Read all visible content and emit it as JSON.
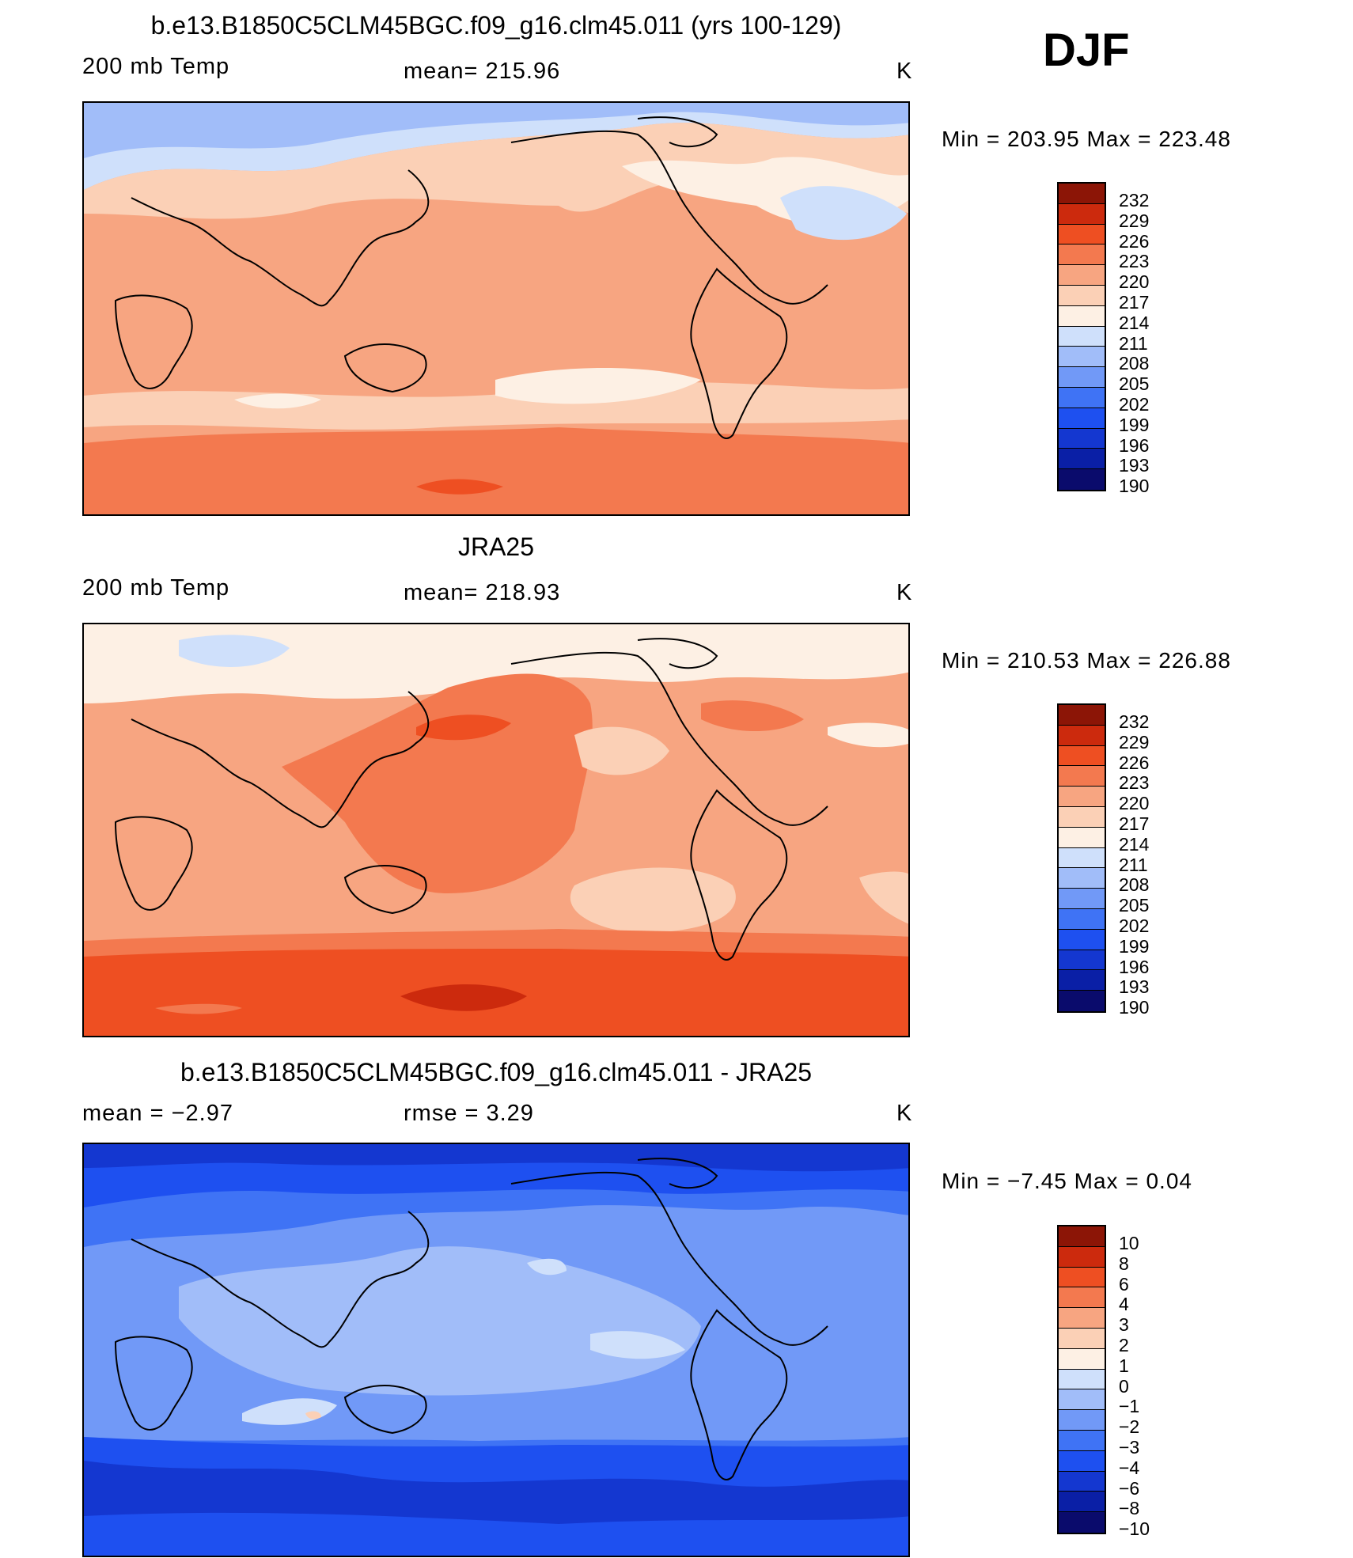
{
  "season": "DJF",
  "colors": {
    "temp_scale": [
      "#0a0b6c",
      "#0a1fa6",
      "#1437d0",
      "#1e50f0",
      "#3f73f5",
      "#7199f7",
      "#a1bdf9",
      "#cfe0fb",
      "#fdf0e4",
      "#fbd0b6",
      "#f7a581",
      "#f3794f",
      "#ee4f22",
      "#cc2a0d",
      "#8c1506"
    ],
    "diff_scale": [
      "#0a0b6c",
      "#0a1fa6",
      "#1437d0",
      "#1e50f0",
      "#3f73f5",
      "#7199f7",
      "#a1bdf9",
      "#cfe0fb",
      "#fdf0e4",
      "#fbd0b6",
      "#f7a581",
      "#f3794f",
      "#ee4f22",
      "#cc2a0d",
      "#8c1506"
    ]
  },
  "panels": [
    {
      "title": "b.e13.B1850C5CLM45BGC.f09_g16.clm45.011 (yrs 100-129)",
      "left_label": "200 mb Temp",
      "center_label": "mean= 215.96",
      "units": "K",
      "minmax": "Min = 203.95 Max = 223.48",
      "levels": [
        "232",
        "229",
        "226",
        "223",
        "220",
        "217",
        "214",
        "211",
        "208",
        "205",
        "202",
        "199",
        "196",
        "193",
        "190"
      ]
    },
    {
      "title": "JRA25",
      "left_label": "200 mb Temp",
      "center_label": "mean= 218.93",
      "units": "K",
      "minmax": "Min = 210.53 Max = 226.88",
      "levels": [
        "232",
        "229",
        "226",
        "223",
        "220",
        "217",
        "214",
        "211",
        "208",
        "205",
        "202",
        "199",
        "196",
        "193",
        "190"
      ]
    },
    {
      "title": "b.e13.B1850C5CLM45BGC.f09_g16.clm45.011 - JRA25",
      "left_label": "mean =   −2.97",
      "center_label": "rmse =    3.29",
      "units": "K",
      "minmax": "Min =   −7.45 Max =     0.04",
      "levels": [
        "10",
        "8",
        "6",
        "4",
        "3",
        "2",
        "1",
        "0",
        "−1",
        "−2",
        "−3",
        "−4",
        "−6",
        "−8",
        "−10"
      ]
    }
  ]
}
